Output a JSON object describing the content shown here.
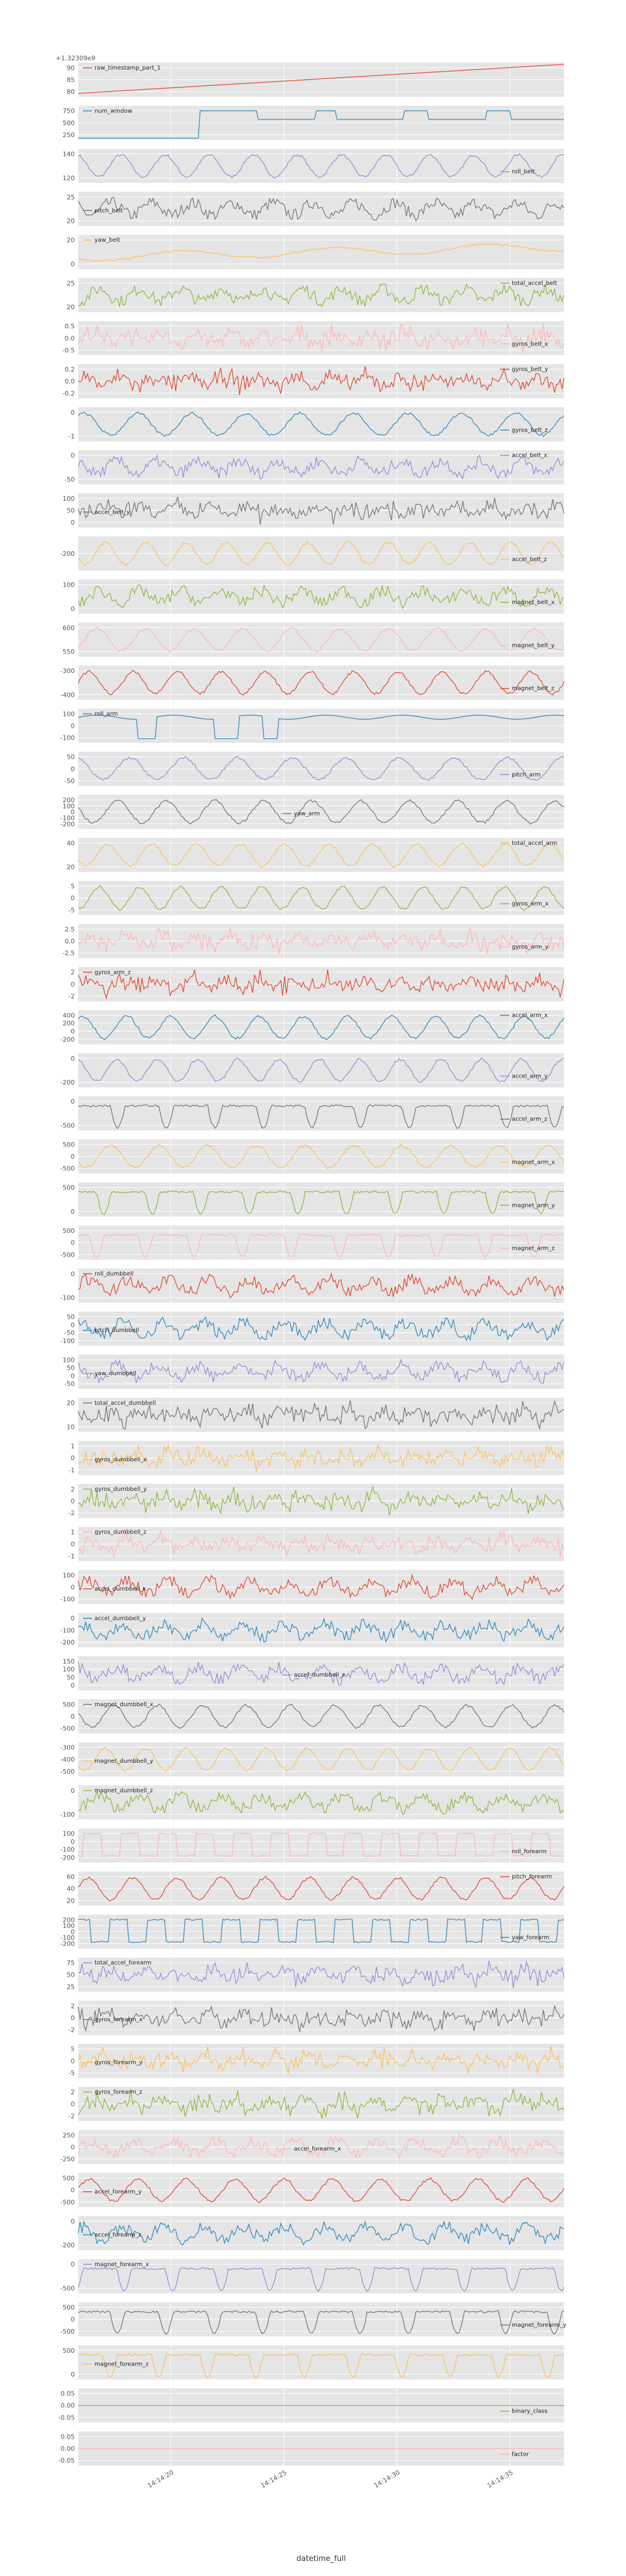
{
  "chart_data": {
    "type": "line",
    "xlabel": "datetime_full",
    "x_ticks": [
      "14:14:20",
      "14:14:25",
      "14:14:30",
      "14:14:35"
    ],
    "offset_text": "+1.32309e9",
    "grid": true,
    "style": "ggplot",
    "colors": [
      "#E24A33",
      "#348ABD",
      "#988ED5",
      "#777777",
      "#FBC15E",
      "#8EBA42",
      "#FFB5B8"
    ],
    "panels": [
      {
        "name": "raw_timestamp_part_1",
        "color": "#E24A33",
        "yticks": [
          "90",
          "85",
          "80"
        ],
        "legend": "top-left",
        "shape": "ramp",
        "range": [
          78,
          91
        ]
      },
      {
        "name": "num_window",
        "color": "#348ABD",
        "yticks": [
          "750",
          "500",
          "250"
        ],
        "legend": "top-left",
        "shape": "step",
        "range": [
          150,
          800
        ]
      },
      {
        "name": "roll_belt",
        "color": "#988ED5",
        "yticks": [
          "140",
          "120"
        ],
        "legend": "right",
        "shape": "wave",
        "range": [
          115,
          145
        ]
      },
      {
        "name": "pitch_belt",
        "color": "#777777",
        "yticks": [
          "25",
          "20"
        ],
        "legend": "left",
        "shape": "noisy",
        "range": [
          18,
          28
        ]
      },
      {
        "name": "yaw_belt",
        "color": "#FBC15E",
        "yticks": [
          "20",
          "0"
        ],
        "legend": "top-left",
        "shape": "slow",
        "range": [
          -8,
          28
        ]
      },
      {
        "name": "total_accel_belt",
        "color": "#8EBA42",
        "yticks": [
          "25",
          "20"
        ],
        "legend": "top-right",
        "shape": "noisy",
        "range": [
          17,
          27
        ]
      },
      {
        "name": "gyros_belt_x",
        "color": "#FFB5B8",
        "yticks": [
          "0.5",
          "0.0",
          "-0.5"
        ],
        "legend": "right",
        "shape": "spiky",
        "range": [
          -0.8,
          0.8
        ]
      },
      {
        "name": "gyros_belt_y",
        "color": "#E24A33",
        "yticks": [
          "0.2",
          "0.0",
          "-0.2"
        ],
        "legend": "top-right",
        "shape": "spiky",
        "range": [
          -0.3,
          0.3
        ]
      },
      {
        "name": "gyros_belt_z",
        "color": "#348ABD",
        "yticks": [
          "0",
          "-1"
        ],
        "legend": "right",
        "shape": "wave",
        "range": [
          -1.4,
          0.6
        ]
      },
      {
        "name": "accel_belt_x",
        "color": "#988ED5",
        "yticks": [
          "0",
          "-50"
        ],
        "legend": "top-right",
        "shape": "noisy",
        "range": [
          -70,
          20
        ]
      },
      {
        "name": "accel_belt_y",
        "color": "#777777",
        "yticks": [
          "100",
          "50",
          "0"
        ],
        "legend": "left",
        "shape": "spiky",
        "range": [
          -20,
          110
        ]
      },
      {
        "name": "accel_belt_z",
        "color": "#FBC15E",
        "yticks": [
          "-200"
        ],
        "legend": "right",
        "shape": "wave",
        "range": [
          -240,
          -120
        ]
      },
      {
        "name": "magnet_belt_x",
        "color": "#8EBA42",
        "yticks": [
          "100",
          "0"
        ],
        "legend": "right",
        "shape": "noisy",
        "range": [
          -30,
          140
        ]
      },
      {
        "name": "magnet_belt_y",
        "color": "#FFB5B8",
        "yticks": [
          "600",
          "550"
        ],
        "legend": "right",
        "shape": "wave",
        "range": [
          530,
          660
        ]
      },
      {
        "name": "magnet_belt_z",
        "color": "#E24A33",
        "yticks": [
          "-300",
          "-400"
        ],
        "legend": "right",
        "shape": "wave",
        "range": [
          -460,
          -260
        ]
      },
      {
        "name": "roll_arm",
        "color": "#348ABD",
        "yticks": [
          "100",
          "0",
          "-100"
        ],
        "legend": "top-left",
        "shape": "step",
        "range": [
          -170,
          140
        ]
      },
      {
        "name": "pitch_arm",
        "color": "#988ED5",
        "yticks": [
          "50",
          "0",
          "-50"
        ],
        "legend": "right",
        "shape": "wave",
        "range": [
          -70,
          70
        ]
      },
      {
        "name": "yaw_arm",
        "color": "#777777",
        "yticks": [
          "200",
          "100",
          "0",
          "-100",
          "-200"
        ],
        "legend": "center",
        "shape": "wave",
        "range": [
          -200,
          200
        ]
      },
      {
        "name": "total_accel_arm",
        "color": "#FBC15E",
        "yticks": [
          "40",
          "20"
        ],
        "legend": "top-right",
        "shape": "wave",
        "range": [
          5,
          50
        ]
      },
      {
        "name": "gyros_arm_x",
        "color": "#8EBA42",
        "yticks": [
          "5",
          "0",
          "-5"
        ],
        "legend": "right",
        "shape": "wave",
        "range": [
          -6,
          6
        ]
      },
      {
        "name": "gyros_arm_y",
        "color": "#FFB5B8",
        "yticks": [
          "2.5",
          "0.0",
          "-2.5"
        ],
        "legend": "right",
        "shape": "spiky",
        "range": [
          -3,
          3
        ]
      },
      {
        "name": "gyros_arm_z",
        "color": "#E24A33",
        "yticks": [
          "2",
          "0",
          "-2"
        ],
        "legend": "top-left",
        "shape": "spiky",
        "range": [
          -3,
          3
        ]
      },
      {
        "name": "accel_arm_x",
        "color": "#348ABD",
        "yticks": [
          "400",
          "200",
          "0",
          "-200"
        ],
        "legend": "top-right",
        "shape": "wave",
        "range": [
          -300,
          450
        ]
      },
      {
        "name": "accel_arm_y",
        "color": "#988ED5",
        "yticks": [
          "0",
          "-200"
        ],
        "legend": "right",
        "shape": "wave",
        "range": [
          -280,
          120
        ]
      },
      {
        "name": "accel_arm_z",
        "color": "#777777",
        "yticks": [
          "0",
          "-500"
        ],
        "legend": "right",
        "shape": "dips",
        "range": [
          -640,
          120
        ]
      },
      {
        "name": "magnet_arm_x",
        "color": "#FBC15E",
        "yticks": [
          "500",
          "0",
          "-500"
        ],
        "legend": "right",
        "shape": "wave",
        "range": [
          -650,
          650
        ]
      },
      {
        "name": "magnet_arm_y",
        "color": "#8EBA42",
        "yticks": [
          "500",
          "0"
        ],
        "legend": "right",
        "shape": "dips",
        "range": [
          -300,
          650
        ]
      },
      {
        "name": "magnet_arm_z",
        "color": "#FFB5B8",
        "yticks": [
          "500",
          "0",
          "-500"
        ],
        "legend": "right",
        "shape": "dips",
        "range": [
          -650,
          650
        ]
      },
      {
        "name": "roll_dumbbell",
        "color": "#E24A33",
        "yticks": [
          "0",
          "-100"
        ],
        "legend": "top-left",
        "shape": "noisy",
        "range": [
          -150,
          80
        ]
      },
      {
        "name": "pitch_dumbbell",
        "color": "#348ABD",
        "yticks": [
          "50",
          "0",
          "-50",
          "-100"
        ],
        "legend": "left",
        "shape": "noisy",
        "range": [
          -110,
          80
        ]
      },
      {
        "name": "yaw_dumbbell",
        "color": "#988ED5",
        "yticks": [
          "100",
          "50",
          "0",
          "-50"
        ],
        "legend": "left",
        "shape": "noisy",
        "range": [
          -80,
          120
        ]
      },
      {
        "name": "total_accel_dumbbell",
        "color": "#777777",
        "yticks": [
          "20",
          "10"
        ],
        "legend": "top-left",
        "shape": "spiky",
        "range": [
          0,
          30
        ]
      },
      {
        "name": "gyros_dumbbell_x",
        "color": "#FBC15E",
        "yticks": [
          "1",
          "0",
          "-1"
        ],
        "legend": "left",
        "shape": "spiky",
        "range": [
          -1.5,
          1.5
        ]
      },
      {
        "name": "gyros_dumbbell_y",
        "color": "#8EBA42",
        "yticks": [
          "2",
          "0",
          "-2"
        ],
        "legend": "top-left",
        "shape": "spiky",
        "range": [
          -3,
          3
        ]
      },
      {
        "name": "gyros_dumbbell_z",
        "color": "#FFB5B8",
        "yticks": [
          "1",
          "0",
          "-1"
        ],
        "legend": "top-left",
        "shape": "spiky",
        "range": [
          -1.5,
          1.5
        ]
      },
      {
        "name": "accel_dumbbell_x",
        "color": "#E24A33",
        "yticks": [
          "100",
          "0",
          "-100"
        ],
        "legend": "left",
        "shape": "noisy",
        "range": [
          -170,
          120
        ]
      },
      {
        "name": "accel_dumbbell_y",
        "color": "#348ABD",
        "yticks": [
          "0",
          "-100",
          "-200"
        ],
        "legend": "top-left",
        "shape": "noisy",
        "range": [
          -220,
          80
        ]
      },
      {
        "name": "accel_dumbbell_z",
        "color": "#988ED5",
        "yticks": [
          "150",
          "100",
          "50",
          "0"
        ],
        "legend": "center",
        "shape": "noisy",
        "range": [
          -20,
          170
        ]
      },
      {
        "name": "magnet_dumbbell_x",
        "color": "#777777",
        "yticks": [
          "500",
          "0",
          "-500"
        ],
        "legend": "top-left",
        "shape": "wave",
        "range": [
          -650,
          650
        ]
      },
      {
        "name": "magnet_dumbbell_y",
        "color": "#FBC15E",
        "yticks": [
          "-300",
          "-400",
          "-500"
        ],
        "legend": "left",
        "shape": "wave",
        "range": [
          -560,
          -260
        ]
      },
      {
        "name": "magnet_dumbbell_z",
        "color": "#8EBA42",
        "yticks": [
          "0",
          "-100"
        ],
        "legend": "top-left",
        "shape": "noisy",
        "range": [
          -160,
          80
        ]
      },
      {
        "name": "roll_forearm",
        "color": "#FFB5B8",
        "yticks": [
          "100",
          "0",
          "-100",
          "-200"
        ],
        "legend": "right",
        "shape": "square",
        "range": [
          -230,
          130
        ]
      },
      {
        "name": "pitch_forearm",
        "color": "#E24A33",
        "yticks": [
          "60",
          "40",
          "20"
        ],
        "legend": "top-right",
        "shape": "wave",
        "range": [
          10,
          70
        ]
      },
      {
        "name": "yaw_forearm",
        "color": "#348ABD",
        "yticks": [
          "200",
          "100",
          "0",
          "-100",
          "-200"
        ],
        "legend": "right",
        "shape": "square",
        "range": [
          -200,
          200
        ]
      },
      {
        "name": "total_accel_forearm",
        "color": "#988ED5",
        "yticks": [
          "75",
          "50",
          "25"
        ],
        "legend": "top-left",
        "shape": "spiky",
        "range": [
          10,
          85
        ]
      },
      {
        "name": "gyros_forearm_x",
        "color": "#777777",
        "yticks": [
          "2",
          "0",
          "-2"
        ],
        "legend": "left",
        "shape": "spiky",
        "range": [
          -3,
          3
        ]
      },
      {
        "name": "gyros_forearm_y",
        "color": "#FBC15E",
        "yticks": [
          "5",
          "0",
          "-5"
        ],
        "legend": "left",
        "shape": "spiky",
        "range": [
          -6,
          6
        ]
      },
      {
        "name": "gyros_forearm_z",
        "color": "#8EBA42",
        "yticks": [
          "2",
          "0",
          "-2"
        ],
        "legend": "top-left",
        "shape": "spiky",
        "range": [
          -3,
          3
        ]
      },
      {
        "name": "accel_forearm_x",
        "color": "#FFB5B8",
        "yticks": [
          "250",
          "0",
          "-250"
        ],
        "legend": "center",
        "shape": "noisy",
        "range": [
          -330,
          330
        ]
      },
      {
        "name": "accel_forearm_y",
        "color": "#E24A33",
        "yticks": [
          "500",
          "0",
          "-500"
        ],
        "legend": "left",
        "shape": "wave",
        "range": [
          -600,
          600
        ]
      },
      {
        "name": "accel_forearm_z",
        "color": "#348ABD",
        "yticks": [
          "0",
          "-200"
        ],
        "legend": "left",
        "shape": "noisy",
        "range": [
          -300,
          100
        ]
      },
      {
        "name": "magnet_forearm_x",
        "color": "#988ED5",
        "yticks": [
          "0",
          "-500"
        ],
        "legend": "top-left",
        "shape": "dips",
        "range": [
          -700,
          150
        ]
      },
      {
        "name": "magnet_forearm_y",
        "color": "#777777",
        "yticks": [
          "500",
          "0",
          "-500"
        ],
        "legend": "right",
        "shape": "dips",
        "range": [
          -650,
          650
        ]
      },
      {
        "name": "magnet_forearm_z",
        "color": "#FBC15E",
        "yticks": [
          "500",
          "0"
        ],
        "legend": "left",
        "shape": "dips",
        "range": [
          -200,
          700
        ]
      },
      {
        "name": "binary_class",
        "color": "#8EBA42",
        "yticks": [
          "0.05",
          "0.00",
          "-0.05"
        ],
        "legend": "right",
        "shape": "flat",
        "range": [
          -0.06,
          0.06
        ]
      },
      {
        "name": "factor",
        "color": "#FFB5B8",
        "yticks": [
          "0.05",
          "0.00",
          "-0.05"
        ],
        "legend": "right",
        "shape": "flat",
        "range": [
          -0.06,
          0.06
        ]
      }
    ]
  }
}
